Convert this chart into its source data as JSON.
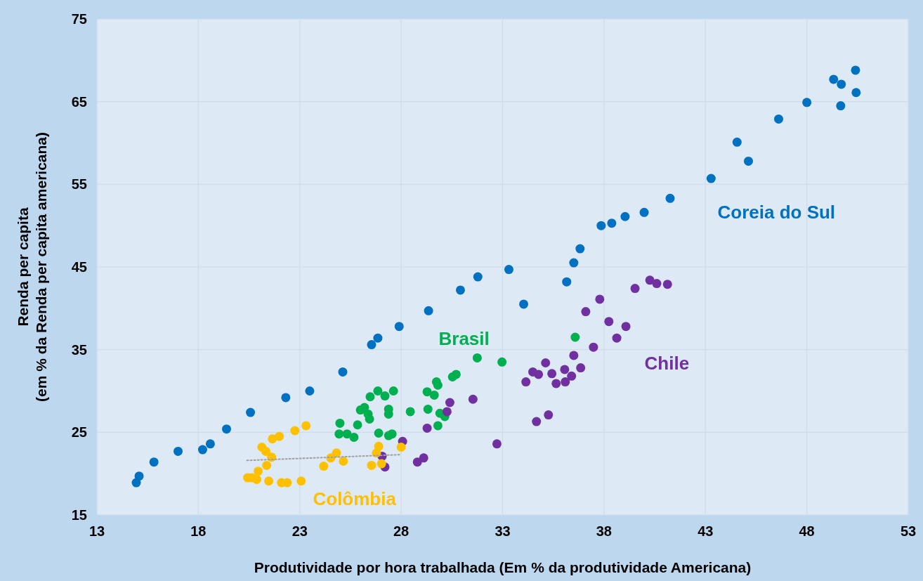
{
  "chart_data": {
    "type": "scatter",
    "xlabel": "Produtividade por hora trabalhada (Em % da produtividade Americana)",
    "ylabel": "Renda per capita\n(em % da Renda per capita americana)",
    "xlim": [
      13,
      53
    ],
    "xticks": [
      13,
      18,
      23,
      28,
      33,
      38,
      43,
      48,
      53
    ],
    "ylim": [
      15,
      75
    ],
    "yticks": [
      15,
      25,
      35,
      45,
      55,
      65,
      75
    ],
    "grid": true,
    "marker": "circle",
    "series": [
      {
        "name": "Coreia do Sul",
        "color": "#0070c0",
        "x": [
          14.94,
          15.08,
          15.81,
          17.0,
          18.21,
          18.59,
          19.39,
          20.57,
          22.31,
          23.49,
          25.12,
          26.54,
          26.85,
          27.9,
          29.35,
          30.92,
          31.78,
          33.31,
          34.04,
          36.16,
          36.51,
          36.82,
          37.86,
          38.38,
          39.04,
          39.98,
          41.26,
          43.28,
          44.56,
          45.12,
          46.61,
          48.0,
          49.32,
          49.7,
          49.67,
          50.4,
          50.43
        ],
        "values": [
          18.9,
          19.7,
          21.4,
          22.7,
          22.9,
          23.6,
          25.4,
          27.4,
          29.2,
          30.0,
          32.3,
          35.6,
          36.4,
          37.8,
          39.7,
          42.2,
          43.8,
          44.7,
          40.5,
          43.2,
          45.5,
          47.2,
          50.0,
          50.3,
          51.1,
          51.6,
          53.3,
          55.7,
          60.1,
          57.8,
          62.9,
          64.9,
          67.7,
          67.1,
          64.5,
          68.8,
          66.1
        ]
      },
      {
        "name": "Brasil",
        "color": "#00b050",
        "x": [
          24.94,
          24.98,
          25.33,
          25.67,
          25.85,
          25.99,
          26.19,
          26.37,
          26.44,
          26.47,
          26.85,
          27.2,
          27.62,
          27.38,
          27.38,
          26.89,
          27.38,
          27.55,
          28.45,
          29.28,
          29.63,
          29.74,
          29.81,
          29.32,
          29.91,
          30.15,
          29.81,
          30.53,
          30.71,
          31.75,
          32.97,
          36.58
        ],
        "values": [
          24.8,
          26.1,
          24.8,
          24.4,
          25.9,
          27.7,
          28.0,
          27.2,
          26.6,
          29.3,
          30.0,
          29.4,
          30.0,
          27.8,
          27.2,
          24.9,
          24.6,
          24.8,
          27.5,
          29.9,
          29.5,
          31.1,
          30.7,
          27.8,
          27.3,
          26.9,
          25.8,
          31.7,
          32.0,
          34.0,
          33.5,
          36.5
        ]
      },
      {
        "name": "Chile",
        "color": "#7030a0",
        "x": [
          39.53,
          40.26,
          40.6,
          41.13,
          37.79,
          37.1,
          38.24,
          39.08,
          38.63,
          37.48,
          36.51,
          35.12,
          36.85,
          36.06,
          34.49,
          34.77,
          35.43,
          36.4,
          36.09,
          35.64,
          34.15,
          35.26,
          34.67,
          32.72,
          31.54,
          30.4,
          30.26,
          29.28,
          28.07,
          28.8,
          29.11,
          27.2,
          27.06
        ],
        "values": [
          42.4,
          43.4,
          43.0,
          42.9,
          41.1,
          39.6,
          38.4,
          37.8,
          36.4,
          35.3,
          34.3,
          33.4,
          32.8,
          32.6,
          32.3,
          32.0,
          32.1,
          31.8,
          31.1,
          30.9,
          31.1,
          27.1,
          26.3,
          23.6,
          29.0,
          28.6,
          27.5,
          25.5,
          23.9,
          21.4,
          21.9,
          20.8,
          22.1
        ]
      },
      {
        "name": "Colômbia",
        "color": "#ffc000",
        "x": [
          23.31,
          22.76,
          21.99,
          21.65,
          21.13,
          21.33,
          21.61,
          21.37,
          20.95,
          20.88,
          20.43,
          20.64,
          21.47,
          22.1,
          22.38,
          23.07,
          24.18,
          24.53,
          24.81,
          25.15,
          26.89,
          26.78,
          26.54,
          27.03,
          28.0
        ],
        "values": [
          25.8,
          25.2,
          24.5,
          24.2,
          23.2,
          22.7,
          22.0,
          21.0,
          20.3,
          19.3,
          19.5,
          19.5,
          19.1,
          18.9,
          18.9,
          19.1,
          20.9,
          21.9,
          22.5,
          21.5,
          23.3,
          22.5,
          21.0,
          21.2,
          23.2
        ]
      },
      {
        "type": "line",
        "color": "#a0a0a0",
        "line_style": "dotted",
        "marker": "none",
        "x": [
          20.4,
          28.0
        ],
        "values": [
          21.6,
          22.3
        ]
      }
    ]
  }
}
